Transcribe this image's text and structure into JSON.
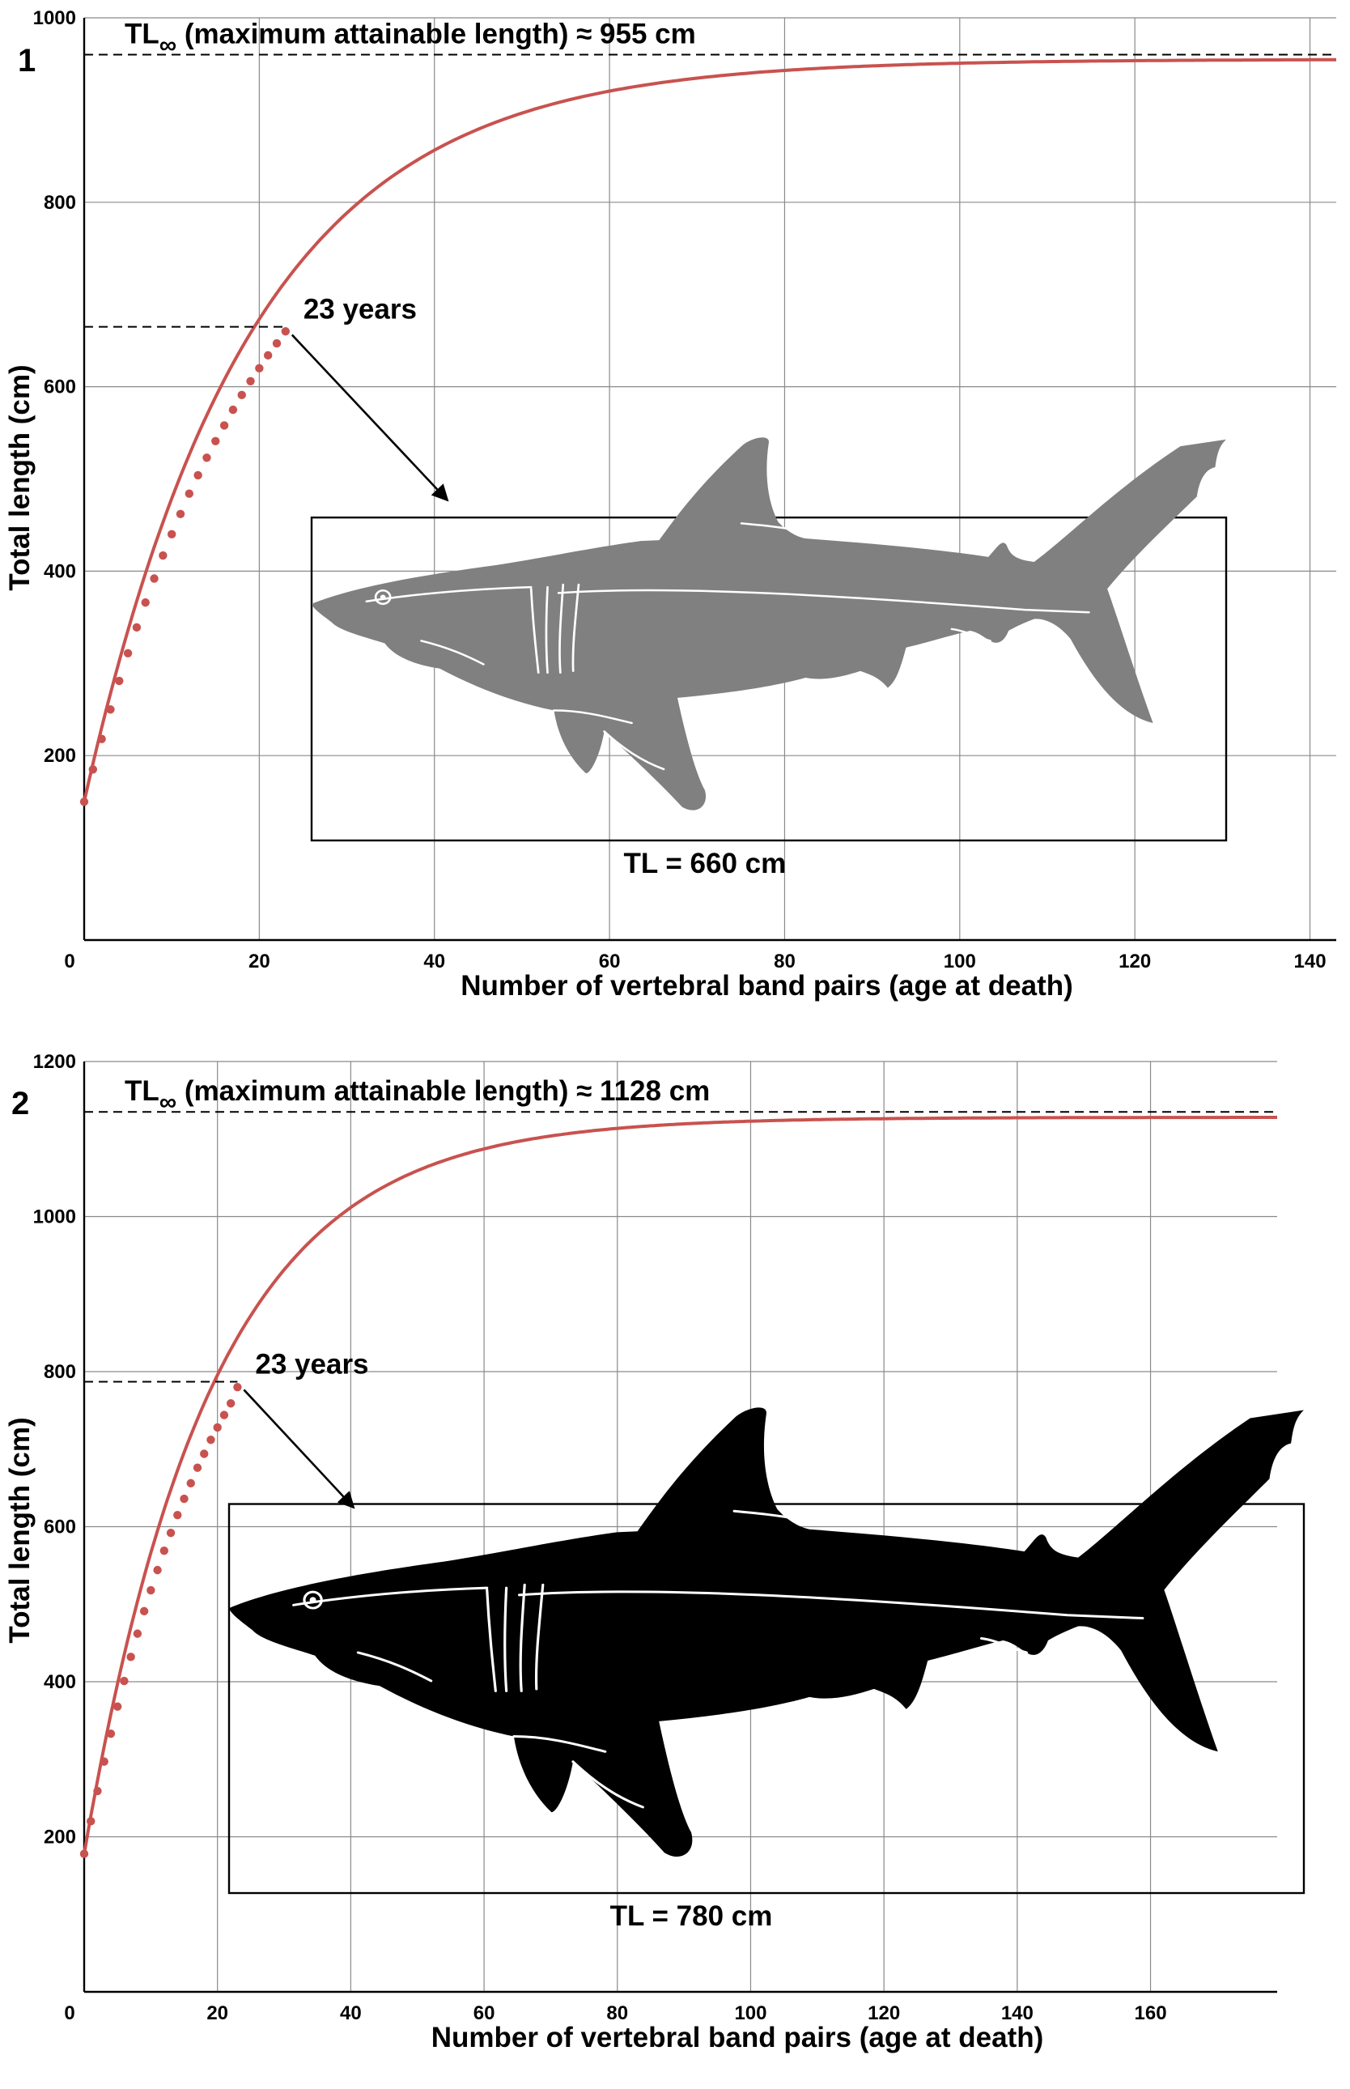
{
  "chart_data": [
    {
      "panel": "1",
      "type": "line",
      "xlabel": "Number of vertebral band pairs (age at death)",
      "ylabel": "Total length (cm)",
      "xlim": [
        0,
        143
      ],
      "ylim": [
        0,
        1000
      ],
      "xticks": [
        0,
        20,
        40,
        60,
        80,
        100,
        120,
        140
      ],
      "yticks": [
        200,
        400,
        600,
        800,
        1000
      ],
      "grid": true,
      "asymptote": {
        "label_pre": "TL",
        "label_sub": "∞",
        "label_post": " (maximum attainable length) ≈ 955 cm",
        "y": 960
      },
      "marker": {
        "label": "23 years",
        "x": 23,
        "y": 665
      },
      "curve": {
        "L_inf": 955,
        "L0": 150,
        "k": 0.0525
      },
      "observed_points": {
        "x": [
          0,
          1,
          2,
          3,
          4,
          5,
          6,
          7,
          8,
          9,
          10,
          11,
          12,
          13,
          14,
          15,
          16,
          17,
          18,
          19,
          20,
          21,
          22,
          23
        ],
        "y": [
          150,
          185,
          218,
          250,
          281,
          311,
          339,
          366,
          392,
          417,
          440,
          462,
          484,
          504,
          523,
          541,
          558,
          575,
          591,
          606,
          620,
          634,
          647,
          660
        ]
      },
      "specimen_label": "TL = 660 cm",
      "specimen_color": "#808080"
    },
    {
      "panel": "2",
      "type": "line",
      "xlabel": "Number of vertebral band pairs (age at death)",
      "ylabel": "Total length (cm)",
      "xlim": [
        0,
        179
      ],
      "ylim": [
        0,
        1200
      ],
      "xticks": [
        0,
        20,
        40,
        60,
        80,
        100,
        120,
        140,
        160
      ],
      "yticks": [
        200,
        400,
        600,
        800,
        1000,
        1200
      ],
      "grid": true,
      "asymptote": {
        "label_pre": "TL",
        "label_sub": "∞",
        "label_post": " (maximum attainable length) ≈ 1128 cm",
        "y": 1135
      },
      "marker": {
        "label": "23 years",
        "x": 23,
        "y": 787
      },
      "curve": {
        "L_inf": 1128,
        "L0": 178,
        "k": 0.0525
      },
      "observed_points": {
        "x": [
          0,
          1,
          2,
          3,
          4,
          5,
          6,
          7,
          8,
          9,
          10,
          11,
          12,
          13,
          14,
          15,
          16,
          17,
          18,
          19,
          20,
          21,
          22,
          23
        ],
        "y": [
          178,
          220,
          259,
          297,
          333,
          368,
          401,
          432,
          462,
          491,
          518,
          544,
          569,
          592,
          615,
          636,
          656,
          676,
          694,
          712,
          728,
          744,
          759,
          780
        ]
      },
      "specimen_label": "TL = 780 cm",
      "specimen_color": "#000000"
    }
  ]
}
